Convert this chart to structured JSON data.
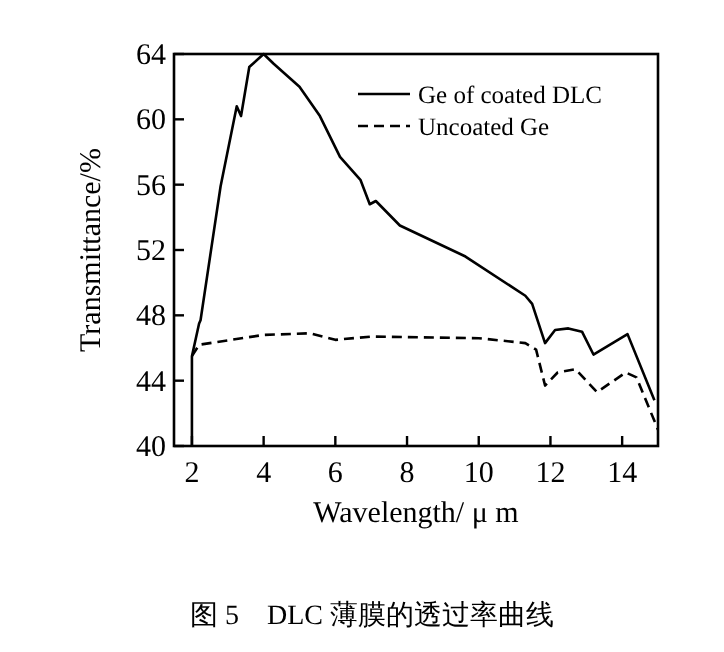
{
  "chart_data": {
    "type": "line",
    "xlabel": "Wavelength/ μ m",
    "ylabel": "Transmittance/%",
    "annotations": [
      "图 5　DLC 薄膜的透过率曲线"
    ],
    "xlim": [
      1.5,
      15
    ],
    "ylim": [
      40,
      64
    ],
    "xticks": [
      2,
      4,
      6,
      8,
      10,
      12,
      14
    ],
    "yticks": [
      40,
      44,
      48,
      52,
      56,
      60,
      64
    ],
    "legend": "top right",
    "grid": false,
    "series": [
      {
        "name": "Ge of coated DLC",
        "color": "#000000",
        "line_style": "solid",
        "x": [
          2,
          2,
          2.2,
          2.24,
          2.8,
          3.25,
          3.37,
          3.6,
          4.0,
          4.28,
          5.0,
          5.57,
          6.13,
          6.7,
          6.96,
          7.13,
          7.8,
          9.63,
          11.3,
          11.49,
          11.85,
          12.13,
          12.5,
          12.88,
          13.2,
          14.15,
          14.9
        ],
        "values": [
          40,
          45.5,
          47.5,
          47.7,
          55.9,
          60.8,
          60.2,
          63.2,
          64,
          63.4,
          62.0,
          60.2,
          57.7,
          56.3,
          54.8,
          55.0,
          53.5,
          51.6,
          49.2,
          48.7,
          46.3,
          47.1,
          47.2,
          47.0,
          45.6,
          46.85,
          42.8
        ]
      },
      {
        "name": "Uncoated Ge",
        "color": "#000000",
        "line_style": "dashed",
        "x": [
          2,
          2.2,
          4,
          5.3,
          6,
          7,
          10,
          11.3,
          11.6,
          11.85,
          12.2,
          12.7,
          13.3,
          14.1,
          14.4,
          15
        ],
        "values": [
          45.5,
          46.2,
          46.8,
          46.9,
          46.5,
          46.7,
          46.6,
          46.3,
          45.9,
          43.7,
          44.5,
          44.7,
          43.3,
          44.5,
          44.2,
          41
        ]
      }
    ]
  }
}
